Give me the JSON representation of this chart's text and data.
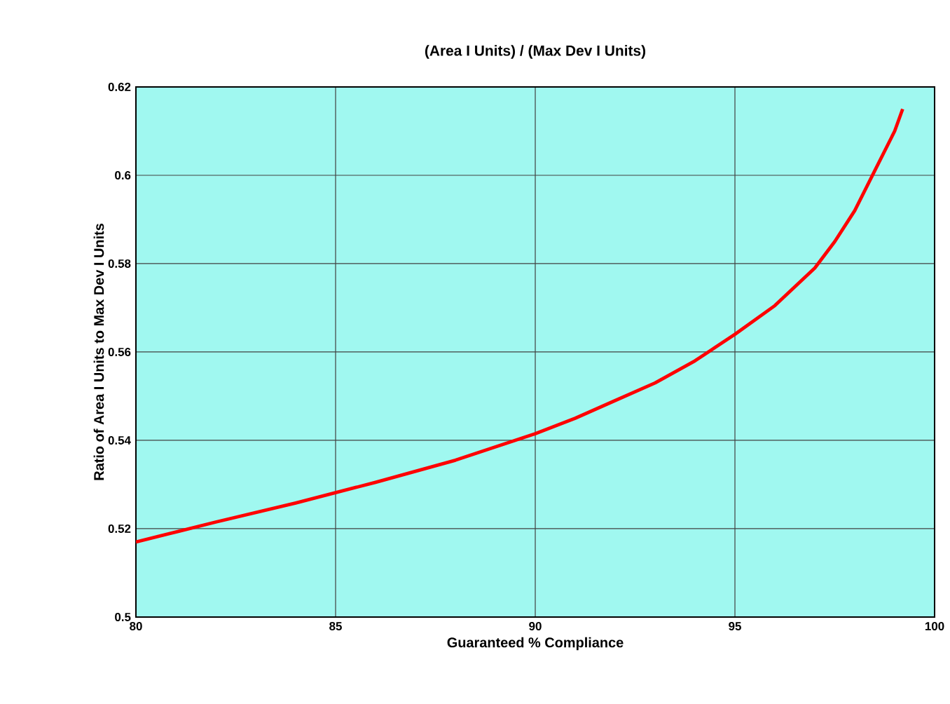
{
  "chart_data": {
    "type": "line",
    "title": "(Area I Units) / (Max Dev I Units)",
    "xlabel": "Guaranteed % Compliance",
    "ylabel": "Ratio of Area I Units to Max Dev I Units",
    "x": [
      80,
      82,
      84,
      86,
      88,
      90,
      91,
      92,
      93,
      94,
      95,
      96,
      97,
      97.5,
      98,
      98.5,
      99,
      99.2
    ],
    "series": [
      {
        "color": "#ff0000",
        "values": [
          0.517,
          0.5215,
          0.5258,
          0.5305,
          0.5355,
          0.5415,
          0.545,
          0.549,
          0.553,
          0.558,
          0.564,
          0.5705,
          0.579,
          0.585,
          0.592,
          0.601,
          0.61,
          0.615
        ]
      }
    ],
    "xlim": [
      80,
      100
    ],
    "ylim": [
      0.5,
      0.62
    ],
    "xticks": [
      80,
      85,
      90,
      95,
      100
    ],
    "yticks": [
      0.5,
      0.52,
      0.54,
      0.56,
      0.58,
      0.6,
      0.62
    ],
    "grid": true,
    "marker": "none",
    "line_style": "solid"
  }
}
